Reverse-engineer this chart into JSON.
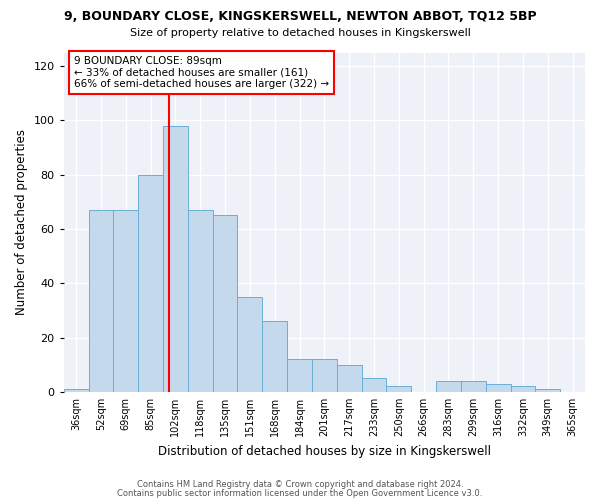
{
  "title": "9, BOUNDARY CLOSE, KINGSKERSWELL, NEWTON ABBOT, TQ12 5BP",
  "subtitle": "Size of property relative to detached houses in Kingskerswell",
  "xlabel": "Distribution of detached houses by size in Kingskerswell",
  "ylabel": "Number of detached properties",
  "bar_labels": [
    "36sqm",
    "52sqm",
    "69sqm",
    "85sqm",
    "102sqm",
    "118sqm",
    "135sqm",
    "151sqm",
    "168sqm",
    "184sqm",
    "201sqm",
    "217sqm",
    "233sqm",
    "250sqm",
    "266sqm",
    "283sqm",
    "299sqm",
    "316sqm",
    "332sqm",
    "349sqm",
    "365sqm"
  ],
  "bar_values": [
    1,
    67,
    67,
    80,
    98,
    67,
    65,
    35,
    26,
    12,
    12,
    10,
    5,
    2,
    0,
    4,
    4,
    3,
    2,
    1,
    0
  ],
  "bar_color": "#c5d9ed",
  "bar_edge_color": "#6aafd6",
  "vline_color": "red",
  "vline_pos": 3.73,
  "ylim": [
    0,
    125
  ],
  "yticks": [
    0,
    20,
    40,
    60,
    80,
    100,
    120
  ],
  "annotation_title": "9 BOUNDARY CLOSE: 89sqm",
  "annotation_line1": "← 33% of detached houses are smaller (161)",
  "annotation_line2": "66% of semi-detached houses are larger (322) →",
  "footer_line1": "Contains HM Land Registry data © Crown copyright and database right 2024.",
  "footer_line2": "Contains public sector information licensed under the Open Government Licence v3.0.",
  "background_color": "#eef2f8"
}
